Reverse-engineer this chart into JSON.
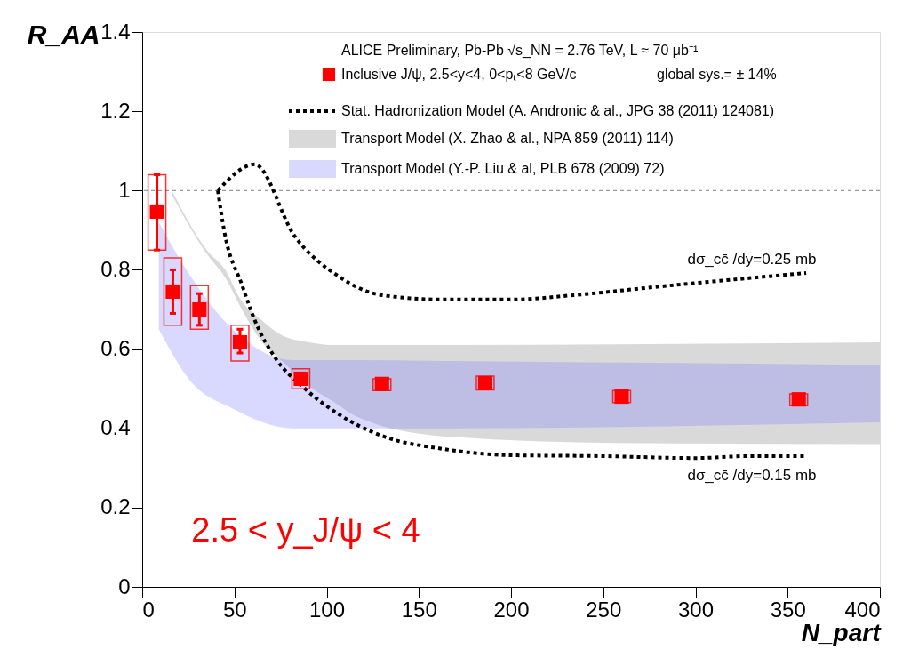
{
  "chart_data": {
    "type": "scatter",
    "legend_title": "ALICE Preliminary, Pb-Pb √s_NN = 2.76 TeV, L ≈ 70 μb⁻¹",
    "xlabel": "N_part",
    "ylabel": "R_AA",
    "xlim": [
      0,
      400
    ],
    "xticks": [
      0,
      50,
      100,
      150,
      200,
      250,
      300,
      350,
      400
    ],
    "ylim": [
      0,
      1.4
    ],
    "yticks": [
      0,
      0.2,
      0.4,
      0.6,
      0.8,
      1,
      1.2,
      1.4
    ],
    "grid": false,
    "legend": "top right",
    "ref_lines": [
      {
        "axis": "y",
        "value": 1,
        "color": "#808080",
        "line_style": "dotted"
      }
    ],
    "annotations": [
      "global sys.= ± 14%",
      "2.5 < y_J/ψ < 4",
      "dσ_cc̄ /dy=0.25 mb",
      "dσ_cc̄ /dy=0.15 mb"
    ],
    "series": [
      {
        "name": "Inclusive J/ψ, 2.5<y<4, 0<pₜ<8 GeV/c",
        "marker": "square",
        "color": "#ff0000",
        "x": [
          8,
          16.6,
          31,
          53,
          86,
          130,
          186,
          260,
          356
        ],
        "values": [
          0.947,
          0.745,
          0.7,
          0.617,
          0.525,
          0.512,
          0.514,
          0.48,
          0.473
        ],
        "errors": [
          [
            0.85,
            1.04
          ],
          [
            0.69,
            0.8
          ],
          [
            0.66,
            0.74
          ],
          [
            0.59,
            0.65
          ],
          null,
          null,
          null,
          null,
          null
        ]
      },
      {
        "type": "bar",
        "color": "#ff0000",
        "x": [
          8,
          16.6,
          31,
          53,
          86,
          130,
          186,
          260,
          356
        ],
        "base": [
          0.85,
          0.66,
          0.65,
          0.57,
          0.5,
          0.495,
          0.497,
          0.465,
          0.457
        ],
        "values": [
          0.19,
          0.17,
          0.11,
          0.09,
          0.05,
          0.03,
          0.035,
          0.03,
          0.03
        ]
      },
      {
        "type": "line",
        "name": "Stat. Hadronization Model (A. Andronic & al., JPG 38 (2011) 124081)",
        "color": "#000000",
        "line_style": "dotted",
        "x": [
          41,
          61,
          82.5,
          106,
          130,
          163,
          201,
          234,
          281,
          329,
          360
        ],
        "values": [
          1.0,
          1.066,
          0.886,
          0.785,
          0.736,
          0.725,
          0.725,
          0.736,
          0.758,
          0.779,
          0.792
        ]
      },
      {
        "type": "line",
        "color": "#000000",
        "line_style": "dotted",
        "x": [
          41,
          44.5,
          54,
          61,
          73,
          87,
          106,
          130,
          163,
          201,
          248,
          300,
          329,
          360
        ],
        "values": [
          1.0,
          0.897,
          0.763,
          0.673,
          0.572,
          0.505,
          0.437,
          0.381,
          0.348,
          0.332,
          0.33,
          0.325,
          0.33,
          0.33
        ]
      },
      {
        "type": "area",
        "name": "Transport Model (X. Zhao & al., NPA 859 (2011) 114)",
        "color": "#808080",
        "x": [
          16,
          35,
          45,
          54,
          63,
          78,
          87,
          106,
          116,
          163,
          258,
          400
        ],
        "values": [
          null,
          null,
          null,
          null,
          null,
          null,
          null,
          null,
          null,
          null,
          null,
          null
        ],
        "upper": [
          1.0,
          0.85,
          0.8,
          0.72,
          0.68,
          0.63,
          0.62,
          0.61,
          0.61,
          0.61,
          0.612,
          0.617
        ],
        "lower": [
          0.99,
          0.84,
          0.78,
          0.7,
          0.63,
          0.56,
          0.52,
          0.46,
          0.43,
          0.38,
          0.363,
          0.36
        ]
      },
      {
        "type": "area",
        "name": "Transport Model (Y.-P. Liu & al, PLB 678 (2009) 72)",
        "color": "#8080ff",
        "x": [
          9,
          26,
          49,
          82,
          116,
          163,
          400
        ],
        "values": [
          null,
          null,
          null,
          null,
          null,
          null,
          null
        ],
        "upper": [
          0.92,
          0.785,
          0.65,
          0.572,
          0.572,
          0.57,
          0.56
        ],
        "lower": [
          0.65,
          0.52,
          0.45,
          0.4,
          0.4,
          0.4,
          0.415
        ]
      }
    ]
  }
}
